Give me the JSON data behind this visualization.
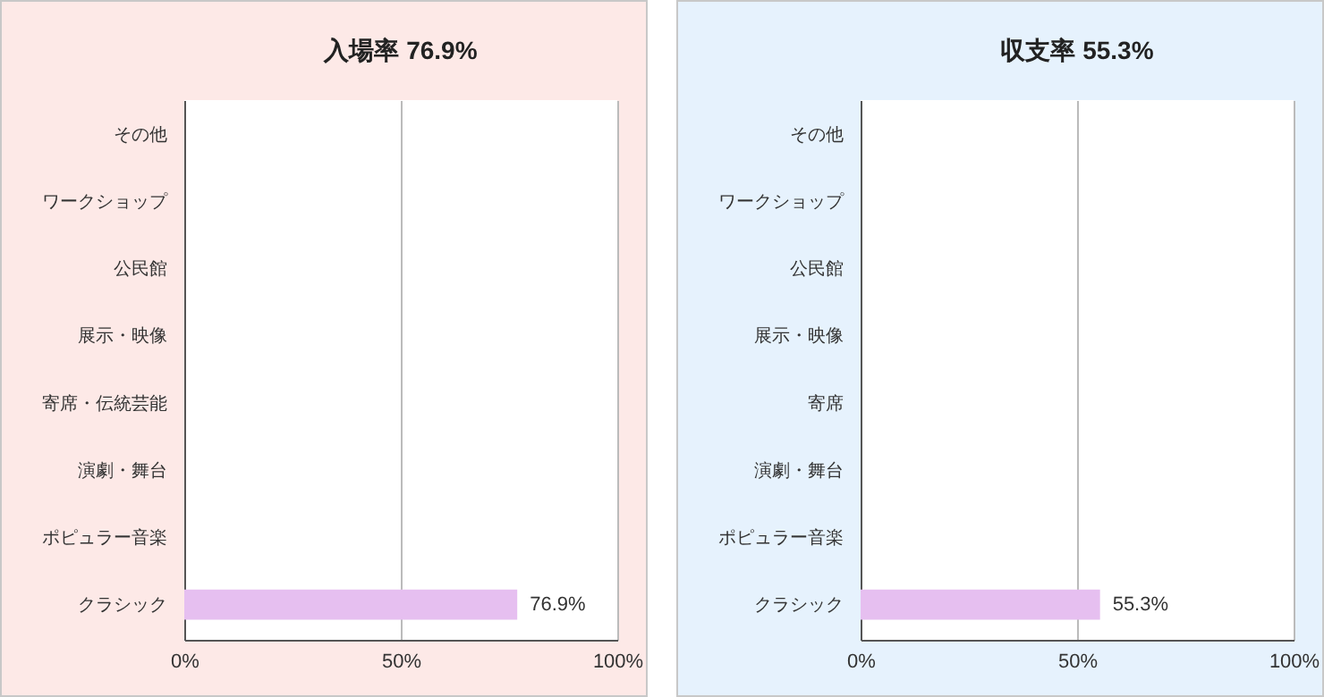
{
  "chart_data": [
    {
      "type": "bar",
      "orientation": "horizontal",
      "title": "入場率 76.9%",
      "categories": [
        "その他",
        "ワークショップ",
        "公民館",
        "展示・映像",
        "寄席・伝統芸能",
        "演劇・舞台",
        "ポピュラー音楽",
        "クラシック"
      ],
      "values": [
        null,
        null,
        null,
        null,
        null,
        null,
        null,
        76.9
      ],
      "value_labels": [
        null,
        null,
        null,
        null,
        null,
        null,
        null,
        "76.9%"
      ],
      "color": "#e6bff0",
      "xlim": [
        0,
        100
      ],
      "xticks": [
        {
          "value": 0,
          "label": "0%"
        },
        {
          "value": 50,
          "label": "50%"
        },
        {
          "value": 100,
          "label": "100%"
        }
      ],
      "grid": "x"
    },
    {
      "type": "bar",
      "orientation": "horizontal",
      "title": "収支率 55.3%",
      "categories": [
        "その他",
        "ワークショップ",
        "公民館",
        "展示・映像",
        "寄席",
        "演劇・舞台",
        "ポピュラー音楽",
        "クラシック"
      ],
      "values": [
        null,
        null,
        null,
        null,
        null,
        null,
        null,
        55.3
      ],
      "value_labels": [
        null,
        null,
        null,
        null,
        null,
        null,
        null,
        "55.3%"
      ],
      "color": "#e6bff0",
      "xlim": [
        0,
        100
      ],
      "xticks": [
        {
          "value": 0,
          "label": "0%"
        },
        {
          "value": 50,
          "label": "50%"
        },
        {
          "value": 100,
          "label": "100%"
        }
      ],
      "grid": "x"
    }
  ]
}
